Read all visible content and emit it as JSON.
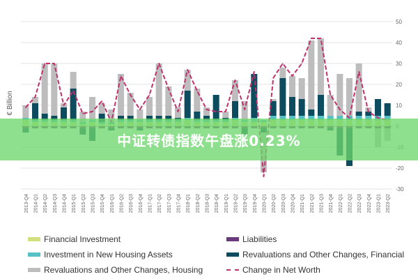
{
  "colors": {
    "financial_investment": "#d3e07f",
    "liabilities": "#6b3a7a",
    "new_housing": "#56c0c4",
    "revaluations_financial": "#0d4b5e",
    "revaluations_housing": "#bdbdbd",
    "net_worth": "#c0306b",
    "grid": "#e3e3e3",
    "axis_text": "#666666"
  },
  "banner": {
    "text": "中证转债指数午盘涨0.23%"
  },
  "legend": [
    {
      "key": "financial_investment",
      "label": "Financial Investment",
      "kind": "bar"
    },
    {
      "key": "liabilities",
      "label": "Liabilities",
      "kind": "bar"
    },
    {
      "key": "new_housing",
      "label": "Investment in New Housing Assets",
      "kind": "bar"
    },
    {
      "key": "revaluations_financial",
      "label": "Revaluations and Other Changes, Financial",
      "kind": "bar"
    },
    {
      "key": "revaluations_housing",
      "label": "Revaluations and Other Changes, Housing",
      "kind": "bar"
    },
    {
      "key": "net_worth",
      "label": "Change in Net Worth",
      "kind": "line"
    }
  ],
  "chart_data": {
    "type": "bar",
    "stacked": true,
    "ylabel": "€ Billion",
    "xlabel": "",
    "ylim": [
      -30,
      50
    ],
    "yticks": [
      -30,
      -20,
      -10,
      0,
      10,
      20,
      30,
      40,
      50
    ],
    "y_axis_side": "right",
    "grid": true,
    "legend_position": "bottom",
    "categories": [
      "2013-Q4",
      "2014-Q1",
      "2014-Q2",
      "2014-Q3",
      "2014-Q4",
      "2015-Q1",
      "2015-Q2",
      "2015-Q3",
      "2015-Q4",
      "2016-Q1",
      "2016-Q2",
      "2016-Q3",
      "2016-Q4",
      "2017-Q1",
      "2017-Q2",
      "2017-Q3",
      "2017-Q4",
      "2018-Q1",
      "2018-Q2",
      "2018-Q3",
      "2018-Q4",
      "2019-Q1",
      "2019-Q2",
      "2019-Q3",
      "2019-Q4",
      "2020-Q1",
      "2020-Q2",
      "2020-Q3",
      "2020-Q4",
      "2021-Q1",
      "2021-Q2",
      "2021-Q3",
      "2021-Q4",
      "2022-Q1",
      "2022-Q2",
      "2022-Q3",
      "2022-Q4",
      "2023-Q1",
      "2023-Q2"
    ],
    "series": [
      {
        "name": "Financial Investment",
        "key": "financial_investment",
        "values": [
          3,
          2,
          2,
          2,
          2,
          2,
          1,
          2,
          1,
          1,
          2,
          2,
          2,
          2,
          2,
          2,
          2,
          3,
          2,
          2,
          2,
          2,
          3,
          2,
          2,
          2,
          3,
          3,
          3,
          3,
          3,
          3,
          3,
          3,
          3,
          3,
          3,
          3,
          3
        ]
      },
      {
        "name": "Liabilities",
        "key": "liabilities",
        "values": [
          -1,
          -1,
          -1,
          -1,
          -1,
          -1,
          -1,
          -1,
          -1,
          -1,
          -1,
          -1,
          -1,
          -1,
          -1,
          -1,
          -1,
          -1,
          -1,
          -1,
          -1,
          -1,
          -1,
          -1,
          -1,
          -1,
          -1,
          -1,
          -1,
          -1,
          -1,
          -1,
          -1,
          -1,
          -1,
          -1,
          -1,
          -1,
          -1
        ]
      },
      {
        "name": "Investment in New Housing Assets",
        "key": "new_housing",
        "values": [
          1,
          1,
          1,
          1,
          1,
          1,
          1,
          1,
          1,
          1,
          1,
          1,
          1,
          1,
          1,
          1,
          1,
          1,
          1,
          1,
          1,
          1,
          1,
          1,
          2,
          1,
          2,
          2,
          2,
          2,
          2,
          2,
          2,
          2,
          2,
          2,
          2,
          2,
          2
        ]
      },
      {
        "name": "Revaluations and Other Changes, Financial",
        "key": "revaluations_financial",
        "values": [
          -2,
          8,
          3,
          2,
          6,
          15,
          -3,
          -6,
          4,
          -1,
          2,
          2,
          -1,
          2,
          2,
          2,
          1,
          13,
          4,
          2,
          12,
          1,
          8,
          -3,
          21,
          -2,
          7,
          18,
          9,
          8,
          3,
          10,
          -1,
          -13,
          -18,
          2,
          2,
          8,
          6
        ]
      },
      {
        "name": "Revaluations and Other Changes, Housing",
        "key": "revaluations_housing",
        "values": [
          6,
          3,
          24,
          25,
          2,
          8,
          5,
          11,
          5,
          6,
          20,
          11,
          5,
          9,
          25,
          14,
          5,
          10,
          11,
          4,
          0,
          3,
          10,
          9,
          0,
          -19,
          1,
          5,
          10,
          10,
          33,
          27,
          10,
          20,
          18,
          23,
          2,
          -9,
          -6
        ]
      },
      {
        "name": "Change in Net Worth",
        "key": "net_worth",
        "kind": "line",
        "values": [
          9,
          14,
          30,
          30,
          10,
          17,
          6,
          7,
          12,
          2,
          24,
          15,
          8,
          15,
          30,
          18,
          7,
          27,
          17,
          8,
          7,
          7,
          22,
          8,
          26,
          -24,
          23,
          30,
          24,
          30,
          42,
          42,
          15,
          8,
          4,
          26,
          7,
          4,
          3
        ]
      }
    ]
  }
}
